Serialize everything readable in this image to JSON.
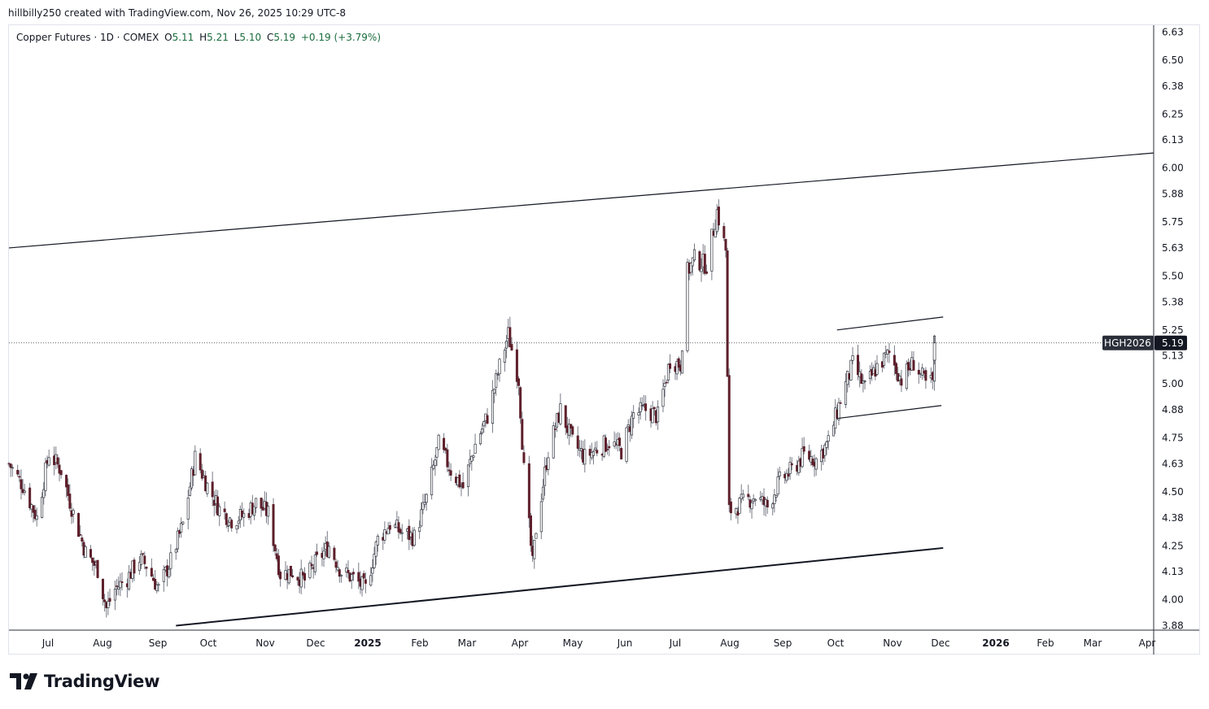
{
  "header": {
    "text": "hillbilly250 created with TradingView.com, Nov 26, 2025 10:29 UTC-8"
  },
  "legend": {
    "symbol": "Copper Futures · 1D · COMEX",
    "open_label": "O",
    "open": "5.11",
    "high_label": "H",
    "high": "5.21",
    "low_label": "L",
    "low": "5.10",
    "close_label": "C",
    "close": "5.19",
    "change": "+0.19 (+3.79%)"
  },
  "price_tag": {
    "symbol": "HGH2026",
    "price": "5.19"
  },
  "brand": {
    "name": "TradingView"
  },
  "colors": {
    "up": "#089981",
    "down": "#5d1f2a",
    "wick": "#787b86",
    "grid": "#f0f3fa",
    "line": "#131722"
  },
  "chart_data": {
    "type": "candlestick",
    "title": "",
    "xlabel": "",
    "ylabel": "",
    "y_axis_side": "right",
    "ylim": [
      3.88,
      6.63
    ],
    "y_ticks": [
      "6.63",
      "6.50",
      "6.38",
      "6.25",
      "6.13",
      "6.00",
      "5.88",
      "5.75",
      "5.63",
      "5.50",
      "5.38",
      "5.25",
      "5.13",
      "5.00",
      "4.88",
      "4.75",
      "4.63",
      "4.50",
      "4.38",
      "4.25",
      "4.13",
      "4.00",
      "3.88"
    ],
    "x_ticks": [
      "Jul",
      "Aug",
      "Sep",
      "Oct",
      "Nov",
      "Dec",
      "2025",
      "Feb",
      "Mar",
      "Apr",
      "May",
      "Jun",
      "Jul",
      "Aug",
      "Sep",
      "Oct",
      "Nov",
      "Dec",
      "2026",
      "Feb",
      "Mar",
      "Apr"
    ],
    "x_tick_bold": [
      "2025",
      "2026"
    ],
    "x_range": [
      "2024-06-12",
      "2026-04-01"
    ],
    "last_price": 5.19,
    "series": [
      {
        "name": "HGH2026",
        "close_path": [
          [
            "2024-06-12",
            4.63
          ],
          [
            "2024-06-20",
            4.53
          ],
          [
            "2024-06-28",
            4.38
          ],
          [
            "2024-07-05",
            4.68
          ],
          [
            "2024-07-12",
            4.6
          ],
          [
            "2024-07-19",
            4.4
          ],
          [
            "2024-07-26",
            4.22
          ],
          [
            "2024-08-02",
            4.14
          ],
          [
            "2024-08-07",
            3.96
          ],
          [
            "2024-08-12",
            4.05
          ],
          [
            "2024-08-19",
            4.1
          ],
          [
            "2024-08-26",
            4.19
          ],
          [
            "2024-08-30",
            4.16
          ],
          [
            "2024-09-06",
            4.05
          ],
          [
            "2024-09-13",
            4.18
          ],
          [
            "2024-09-20",
            4.35
          ],
          [
            "2024-09-27",
            4.66
          ],
          [
            "2024-10-04",
            4.53
          ],
          [
            "2024-10-11",
            4.42
          ],
          [
            "2024-10-18",
            4.37
          ],
          [
            "2024-10-25",
            4.39
          ],
          [
            "2024-11-01",
            4.45
          ],
          [
            "2024-11-08",
            4.4
          ],
          [
            "2024-11-15",
            4.12
          ],
          [
            "2024-11-22",
            4.13
          ],
          [
            "2024-11-29",
            4.09
          ],
          [
            "2024-12-06",
            4.18
          ],
          [
            "2024-12-13",
            4.25
          ],
          [
            "2024-12-20",
            4.13
          ],
          [
            "2024-12-27",
            4.1
          ],
          [
            "2025-01-03",
            4.05
          ],
          [
            "2025-01-10",
            4.28
          ],
          [
            "2025-01-17",
            4.35
          ],
          [
            "2025-01-24",
            4.31
          ],
          [
            "2025-01-31",
            4.29
          ],
          [
            "2025-02-07",
            4.47
          ],
          [
            "2025-02-14",
            4.72
          ],
          [
            "2025-02-21",
            4.6
          ],
          [
            "2025-02-28",
            4.52
          ],
          [
            "2025-03-07",
            4.72
          ],
          [
            "2025-03-14",
            4.85
          ],
          [
            "2025-03-21",
            5.08
          ],
          [
            "2025-03-26",
            5.23
          ],
          [
            "2025-04-01",
            5.02
          ],
          [
            "2025-04-04",
            4.6
          ],
          [
            "2025-04-09",
            4.16
          ],
          [
            "2025-04-11",
            4.33
          ],
          [
            "2025-04-18",
            4.69
          ],
          [
            "2025-04-25",
            4.88
          ],
          [
            "2025-05-02",
            4.73
          ],
          [
            "2025-05-09",
            4.66
          ],
          [
            "2025-05-16",
            4.7
          ],
          [
            "2025-05-23",
            4.73
          ],
          [
            "2025-05-30",
            4.69
          ],
          [
            "2025-06-06",
            4.86
          ],
          [
            "2025-06-13",
            4.88
          ],
          [
            "2025-06-20",
            4.85
          ],
          [
            "2025-06-27",
            5.11
          ],
          [
            "2025-07-03",
            5.09
          ],
          [
            "2025-07-07",
            5.52
          ],
          [
            "2025-07-11",
            5.58
          ],
          [
            "2025-07-18",
            5.55
          ],
          [
            "2025-07-24",
            5.8
          ],
          [
            "2025-07-29",
            5.62
          ],
          [
            "2025-07-31",
            4.41
          ],
          [
            "2025-08-08",
            4.45
          ],
          [
            "2025-08-15",
            4.48
          ],
          [
            "2025-08-22",
            4.43
          ],
          [
            "2025-08-29",
            4.55
          ],
          [
            "2025-09-05",
            4.6
          ],
          [
            "2025-09-12",
            4.67
          ],
          [
            "2025-09-19",
            4.65
          ],
          [
            "2025-09-26",
            4.73
          ],
          [
            "2025-10-03",
            4.93
          ],
          [
            "2025-10-10",
            5.09
          ],
          [
            "2025-10-17",
            4.98
          ],
          [
            "2025-10-24",
            5.08
          ],
          [
            "2025-10-31",
            5.14
          ],
          [
            "2025-11-07",
            5.02
          ],
          [
            "2025-11-14",
            5.1
          ],
          [
            "2025-11-21",
            5.0
          ],
          [
            "2025-11-25",
            5.01
          ],
          [
            "2025-11-26",
            5.19
          ]
        ]
      }
    ],
    "trendlines": [
      {
        "name": "upper-channel",
        "points": [
          [
            "2024-06-12",
            5.63
          ],
          [
            "2026-04-01",
            6.07
          ]
        ]
      },
      {
        "name": "lower-channel",
        "points": [
          [
            "2024-09-16",
            3.88
          ],
          [
            "2025-12-01",
            4.24
          ]
        ]
      },
      {
        "name": "flag-upper",
        "points": [
          [
            "2025-10-01",
            5.25
          ],
          [
            "2025-12-01",
            5.31
          ]
        ]
      },
      {
        "name": "flag-lower",
        "points": [
          [
            "2025-10-01",
            4.84
          ],
          [
            "2025-11-30",
            4.9
          ]
        ]
      }
    ]
  }
}
